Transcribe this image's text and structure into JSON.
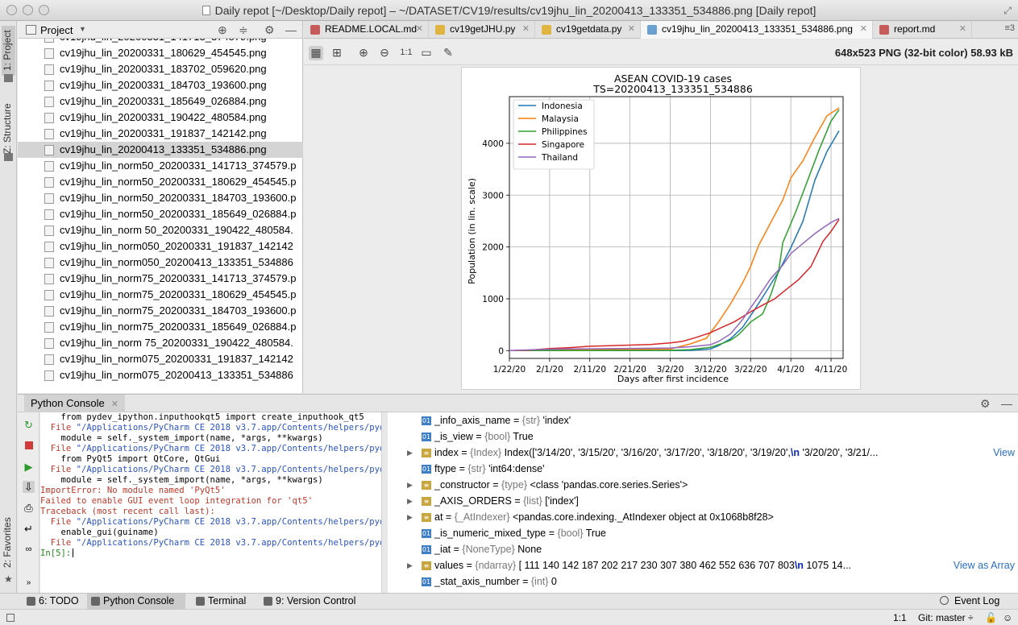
{
  "window": {
    "title": "Daily repot [~/Desktop/Daily repot] – ~/DATASET/CV19/results/cv19jhu_lin_20200413_133351_534886.png [Daily repot]"
  },
  "left_strip": {
    "project_tab": "1: Project",
    "structure_tab": "Z: Structure",
    "favorites_tab": "2: Favorites"
  },
  "project": {
    "title": "Project",
    "files": [
      "cv19jhu_lin_20200331_141713_374579.png",
      "cv19jhu_lin_20200331_180629_454545.png",
      "cv19jhu_lin_20200331_183702_059620.png",
      "cv19jhu_lin_20200331_184703_193600.png",
      "cv19jhu_lin_20200331_185649_026884.png",
      "cv19jhu_lin_20200331_190422_480584.png",
      "cv19jhu_lin_20200331_191837_142142.png",
      "cv19jhu_lin_20200413_133351_534886.png",
      "cv19jhu_lin_norm50_20200331_141713_374579.p",
      "cv19jhu_lin_norm50_20200331_180629_454545.p",
      "cv19jhu_lin_norm50_20200331_184703_193600.p",
      "cv19jhu_lin_norm50_20200331_185649_026884.p",
      "cv19jhu_lin_norm 50_20200331_190422_480584.",
      "cv19jhu_lin_norm050_20200331_191837_142142",
      "cv19jhu_lin_norm050_20200413_133351_534886",
      "cv19jhu_lin_norm75_20200331_141713_374579.p",
      "cv19jhu_lin_norm75_20200331_180629_454545.p",
      "cv19jhu_lin_norm75_20200331_184703_193600.p",
      "cv19jhu_lin_norm75_20200331_185649_026884.p",
      "cv19jhu_lin_norm 75_20200331_190422_480584.",
      "cv19jhu_lin_norm075_20200331_191837_142142",
      "cv19jhu_lin_norm075_20200413_133351_534886"
    ],
    "selected_index": 7
  },
  "tabs": [
    {
      "label": "README.LOCAL.md",
      "color": "#c75a5a",
      "active": false
    },
    {
      "label": "cv19getJHU.py",
      "color": "#e0b441",
      "active": false
    },
    {
      "label": "cv19getdata.py",
      "color": "#e0b441",
      "active": false
    },
    {
      "label": "cv19jhu_lin_20200413_133351_534886.png",
      "color": "#6aa0d0",
      "active": true
    },
    {
      "label": "report.md",
      "color": "#c75a5a",
      "active": false
    }
  ],
  "tab_menu": "≡3",
  "image_viewer": {
    "info": "648x523 PNG (32-bit color) 58.93 kB",
    "zoom_label": "1:1"
  },
  "chart_data": {
    "type": "line",
    "title": "ASEAN COVID-19 cases",
    "subtitle": "TS=20200413_133351_534886",
    "xlabel": "Days after first incidence",
    "ylabel": "Population (in lin. scale)",
    "x_ticks": [
      "1/22/20",
      "2/1/20",
      "2/11/20",
      "2/21/20",
      "3/2/20",
      "3/12/20",
      "3/22/20",
      "4/1/20",
      "4/11/20"
    ],
    "x_range_days": [
      0,
      83
    ],
    "ylim": [
      -150,
      4900
    ],
    "y_ticks": [
      0,
      1000,
      2000,
      3000,
      4000
    ],
    "grid": true,
    "legend_position": "top-left",
    "series": [
      {
        "name": "Indonesia",
        "color": "#1f77b4",
        "points": [
          [
            0,
            0
          ],
          [
            40,
            2
          ],
          [
            45,
            4
          ],
          [
            50,
            34
          ],
          [
            52,
            96
          ],
          [
            55,
            227
          ],
          [
            58,
            450
          ],
          [
            61,
            790
          ],
          [
            64,
            1155
          ],
          [
            67,
            1528
          ],
          [
            70,
            1986
          ],
          [
            73,
            2491
          ],
          [
            76,
            3293
          ],
          [
            79,
            3842
          ],
          [
            82,
            4241
          ]
        ]
      },
      {
        "name": "Malaysia",
        "color": "#ff7f0e",
        "points": [
          [
            0,
            0
          ],
          [
            5,
            4
          ],
          [
            10,
            8
          ],
          [
            15,
            18
          ],
          [
            20,
            22
          ],
          [
            30,
            22
          ],
          [
            40,
            29
          ],
          [
            45,
            129
          ],
          [
            49,
            238
          ],
          [
            52,
            553
          ],
          [
            55,
            900
          ],
          [
            58,
            1306
          ],
          [
            60,
            1624
          ],
          [
            62,
            2031
          ],
          [
            65,
            2470
          ],
          [
            68,
            2908
          ],
          [
            70,
            3333
          ],
          [
            73,
            3662
          ],
          [
            76,
            4119
          ],
          [
            79,
            4530
          ],
          [
            82,
            4683
          ]
        ]
      },
      {
        "name": "Philippines",
        "color": "#2ca02c",
        "points": [
          [
            0,
            0
          ],
          [
            10,
            1
          ],
          [
            20,
            3
          ],
          [
            40,
            5
          ],
          [
            45,
            20
          ],
          [
            50,
            64
          ],
          [
            53,
            140
          ],
          [
            55,
            200
          ],
          [
            57,
            307
          ],
          [
            60,
            552
          ],
          [
            63,
            707
          ],
          [
            65,
            1075
          ],
          [
            67,
            1546
          ],
          [
            68,
            2084
          ],
          [
            71,
            2633
          ],
          [
            74,
            3246
          ],
          [
            77,
            3870
          ],
          [
            80,
            4428
          ],
          [
            82,
            4648
          ]
        ]
      },
      {
        "name": "Singapore",
        "color": "#d62728",
        "points": [
          [
            0,
            0
          ],
          [
            5,
            10
          ],
          [
            10,
            40
          ],
          [
            15,
            58
          ],
          [
            20,
            85
          ],
          [
            25,
            96
          ],
          [
            30,
            106
          ],
          [
            35,
            117
          ],
          [
            40,
            150
          ],
          [
            43,
            178
          ],
          [
            46,
            243
          ],
          [
            50,
            345
          ],
          [
            53,
            455
          ],
          [
            56,
            558
          ],
          [
            60,
            749
          ],
          [
            63,
            879
          ],
          [
            66,
            1000
          ],
          [
            69,
            1189
          ],
          [
            72,
            1375
          ],
          [
            75,
            1623
          ],
          [
            78,
            2108
          ],
          [
            80,
            2299
          ],
          [
            82,
            2532
          ]
        ]
      },
      {
        "name": "Thailand",
        "color": "#9467bd",
        "points": [
          [
            0,
            2
          ],
          [
            5,
            14
          ],
          [
            10,
            25
          ],
          [
            15,
            32
          ],
          [
            20,
            35
          ],
          [
            30,
            42
          ],
          [
            40,
            50
          ],
          [
            45,
            75
          ],
          [
            50,
            114
          ],
          [
            52,
            177
          ],
          [
            55,
            322
          ],
          [
            58,
            599
          ],
          [
            60,
            827
          ],
          [
            62,
            1045
          ],
          [
            65,
            1388
          ],
          [
            68,
            1651
          ],
          [
            70,
            1875
          ],
          [
            73,
            2067
          ],
          [
            76,
            2258
          ],
          [
            78,
            2369
          ],
          [
            80,
            2473
          ],
          [
            82,
            2551
          ]
        ]
      }
    ]
  },
  "console": {
    "tab_label": "Python Console",
    "lines": [
      {
        "type": "normal",
        "text": "    from pydev_ipython.inputhookqt5 import create_inputhook_qt5"
      },
      {
        "type": "link",
        "prefix": "  File ",
        "text": "\"/Applications/PyCharm CE 2018 v3.7.app/Contents/helpers/pydev/_"
      },
      {
        "type": "normal",
        "text": "    module = self._system_import(name, *args, **kwargs)"
      },
      {
        "type": "link",
        "prefix": "  File ",
        "text": "\"/Applications/PyCharm CE 2018 v3.7.app/Contents/helpers/pydev/p"
      },
      {
        "type": "normal",
        "text": "    from PyQt5 import QtCore, QtGui"
      },
      {
        "type": "link",
        "prefix": "  File ",
        "text": "\"/Applications/PyCharm CE 2018 v3.7.app/Contents/helpers/pydev/_"
      },
      {
        "type": "normal",
        "text": "    module = self._system_import(name, *args, **kwargs)"
      },
      {
        "type": "err",
        "text": "ImportError: No module named 'PyQt5'"
      },
      {
        "type": "err",
        "text": "Failed to enable GUI event loop integration for 'qt5'"
      },
      {
        "type": "err",
        "text": "Traceback (most recent call last):"
      },
      {
        "type": "link",
        "prefix": "  File ",
        "text": "\"/Applications/PyCharm CE 2018 v3.7.app/Contents/helpers/pydev/_"
      },
      {
        "type": "normal",
        "text": "    enable_gui(guiname)"
      },
      {
        "type": "link",
        "prefix": "  File ",
        "text": "\"/Applications/PyCharm CE 2018 v3.7.app/Contents/helpers/pydev/p"
      }
    ],
    "prompt": "In[5]:"
  },
  "variables": [
    {
      "expand": false,
      "icon": "01",
      "name": "_info_axis_name",
      "type": "{str}",
      "value": "'index'"
    },
    {
      "expand": false,
      "icon": "01",
      "name": "_is_view",
      "type": "{bool}",
      "value": "True"
    },
    {
      "expand": true,
      "icon": "list",
      "name": "index",
      "type": "{Index}",
      "value": "Index(['3/14/20', '3/15/20', '3/16/20', '3/17/20', '3/18/20', '3/19/20',",
      "newline": "\\n",
      "value2": "       '3/20/20', '3/21/...",
      "link": "View"
    },
    {
      "expand": false,
      "icon": "01",
      "name": "ftype",
      "type": "{str}",
      "value": "'int64:dense'"
    },
    {
      "expand": true,
      "icon": "list",
      "name": "_constructor",
      "type": "{type}",
      "value": "<class 'pandas.core.series.Series'>"
    },
    {
      "expand": true,
      "icon": "list",
      "name": "_AXIS_ORDERS",
      "type": "{list}",
      "value": "['index']"
    },
    {
      "expand": true,
      "icon": "list",
      "name": "at",
      "type": "{_AtIndexer}",
      "value": "<pandas.core.indexing._AtIndexer object at 0x1068b8f28>"
    },
    {
      "expand": false,
      "icon": "01",
      "name": "_is_numeric_mixed_type",
      "type": "{bool}",
      "value": "True"
    },
    {
      "expand": false,
      "icon": "01",
      "name": "_iat",
      "type": "{NoneType}",
      "value": "None"
    },
    {
      "expand": true,
      "icon": "list",
      "name": "values",
      "type": "{ndarray}",
      "value": "[ 111  140  142  187  202  217  230  307  380  462  552  636  707  803",
      "newline": "\\n",
      "value2": " 1075 14...",
      "link": "View as Array"
    },
    {
      "expand": false,
      "icon": "01",
      "name": "_stat_axis_number",
      "type": "{int}",
      "value": "0"
    }
  ],
  "bottom_tabs": [
    {
      "label": "6: TODO",
      "active": false
    },
    {
      "label": "Python Console",
      "active": true
    },
    {
      "label": "Terminal",
      "active": false
    },
    {
      "label": "9: Version Control",
      "active": false
    }
  ],
  "event_log": "Event Log",
  "status": {
    "position": "1:1",
    "git": "Git: master ÷"
  }
}
